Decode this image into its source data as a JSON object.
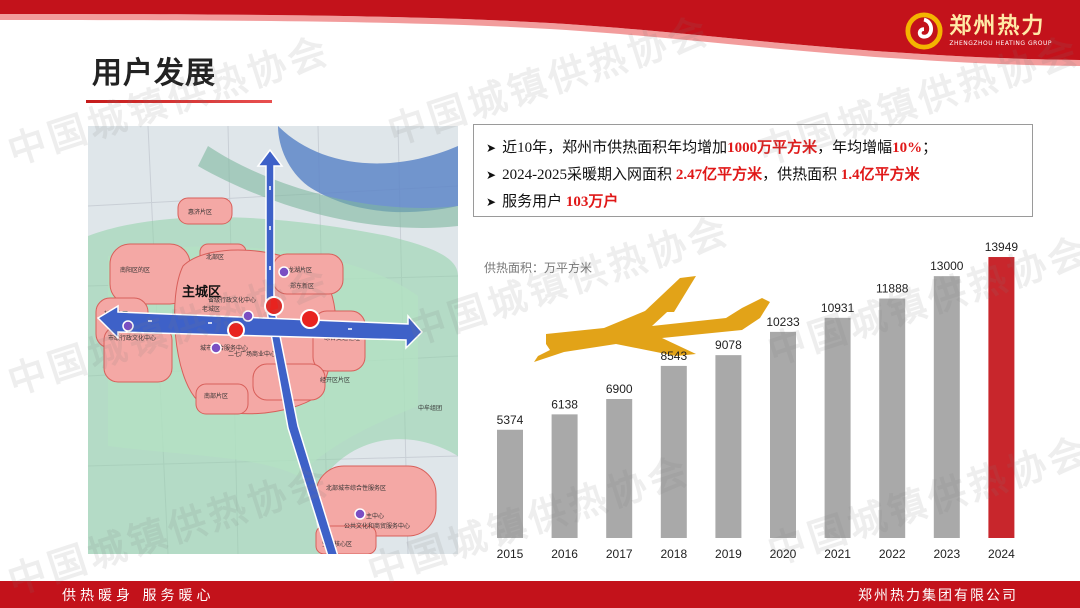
{
  "header": {
    "logo_text": "郑州热力",
    "logo_subtext": "ZHENGZHOU HEATING GROUP",
    "page_title": "用户发展"
  },
  "watermark": "中国城镇供热协会",
  "map": {
    "main_label": "主城区",
    "districts": [
      "惠济片区",
      "北部区",
      "南阳区的区",
      "杜牛片区",
      "郑东新区",
      "龙湖片区",
      "老城区",
      "航空港片区",
      "二七片区",
      "南部片区",
      "经开区片区",
      "中牟组团",
      "市级行政文化中心",
      "北部城市综合性服务区",
      "主中心",
      "空港核心区",
      "公共文化和商贸服务中心",
      "省级行政文化中心",
      "综合交通枢纽",
      "二七广场商业中心",
      "城市综合服务中心"
    ]
  },
  "stats": {
    "line1_prefix": "近10年，郑州市供热面积年均增加",
    "line1_hl1": "1000万平方米",
    "line1_mid": "，年均增幅",
    "line1_hl2": "10%",
    "line1_suffix": "；",
    "line2_prefix": "2024-2025采暖期入网面积 ",
    "line2_hl1": "2.47亿平方米",
    "line2_mid": "，供热面积 ",
    "line2_hl2": "1.4亿平方米",
    "line3_prefix": "服务用户 ",
    "line3_hl": "103万户"
  },
  "chart_data": {
    "type": "bar",
    "title": "供热面积：万平方米",
    "categories": [
      "2015",
      "2016",
      "2017",
      "2018",
      "2019",
      "2020",
      "2021",
      "2022",
      "2023",
      "2024"
    ],
    "values": [
      5374,
      6138,
      6900,
      8543,
      9078,
      10233,
      10931,
      11888,
      13000,
      13949
    ],
    "highlight_index": 9,
    "colors": {
      "bar": "#a9a9a9",
      "highlight": "#c8262c",
      "plane": "#e2a318"
    }
  },
  "footer": {
    "left_text": "供热暖身  服务暖心",
    "right_text": "郑州热力集团有限公司"
  },
  "colors": {
    "brand_red": "#c3121b",
    "accent_red": "#e01818"
  }
}
